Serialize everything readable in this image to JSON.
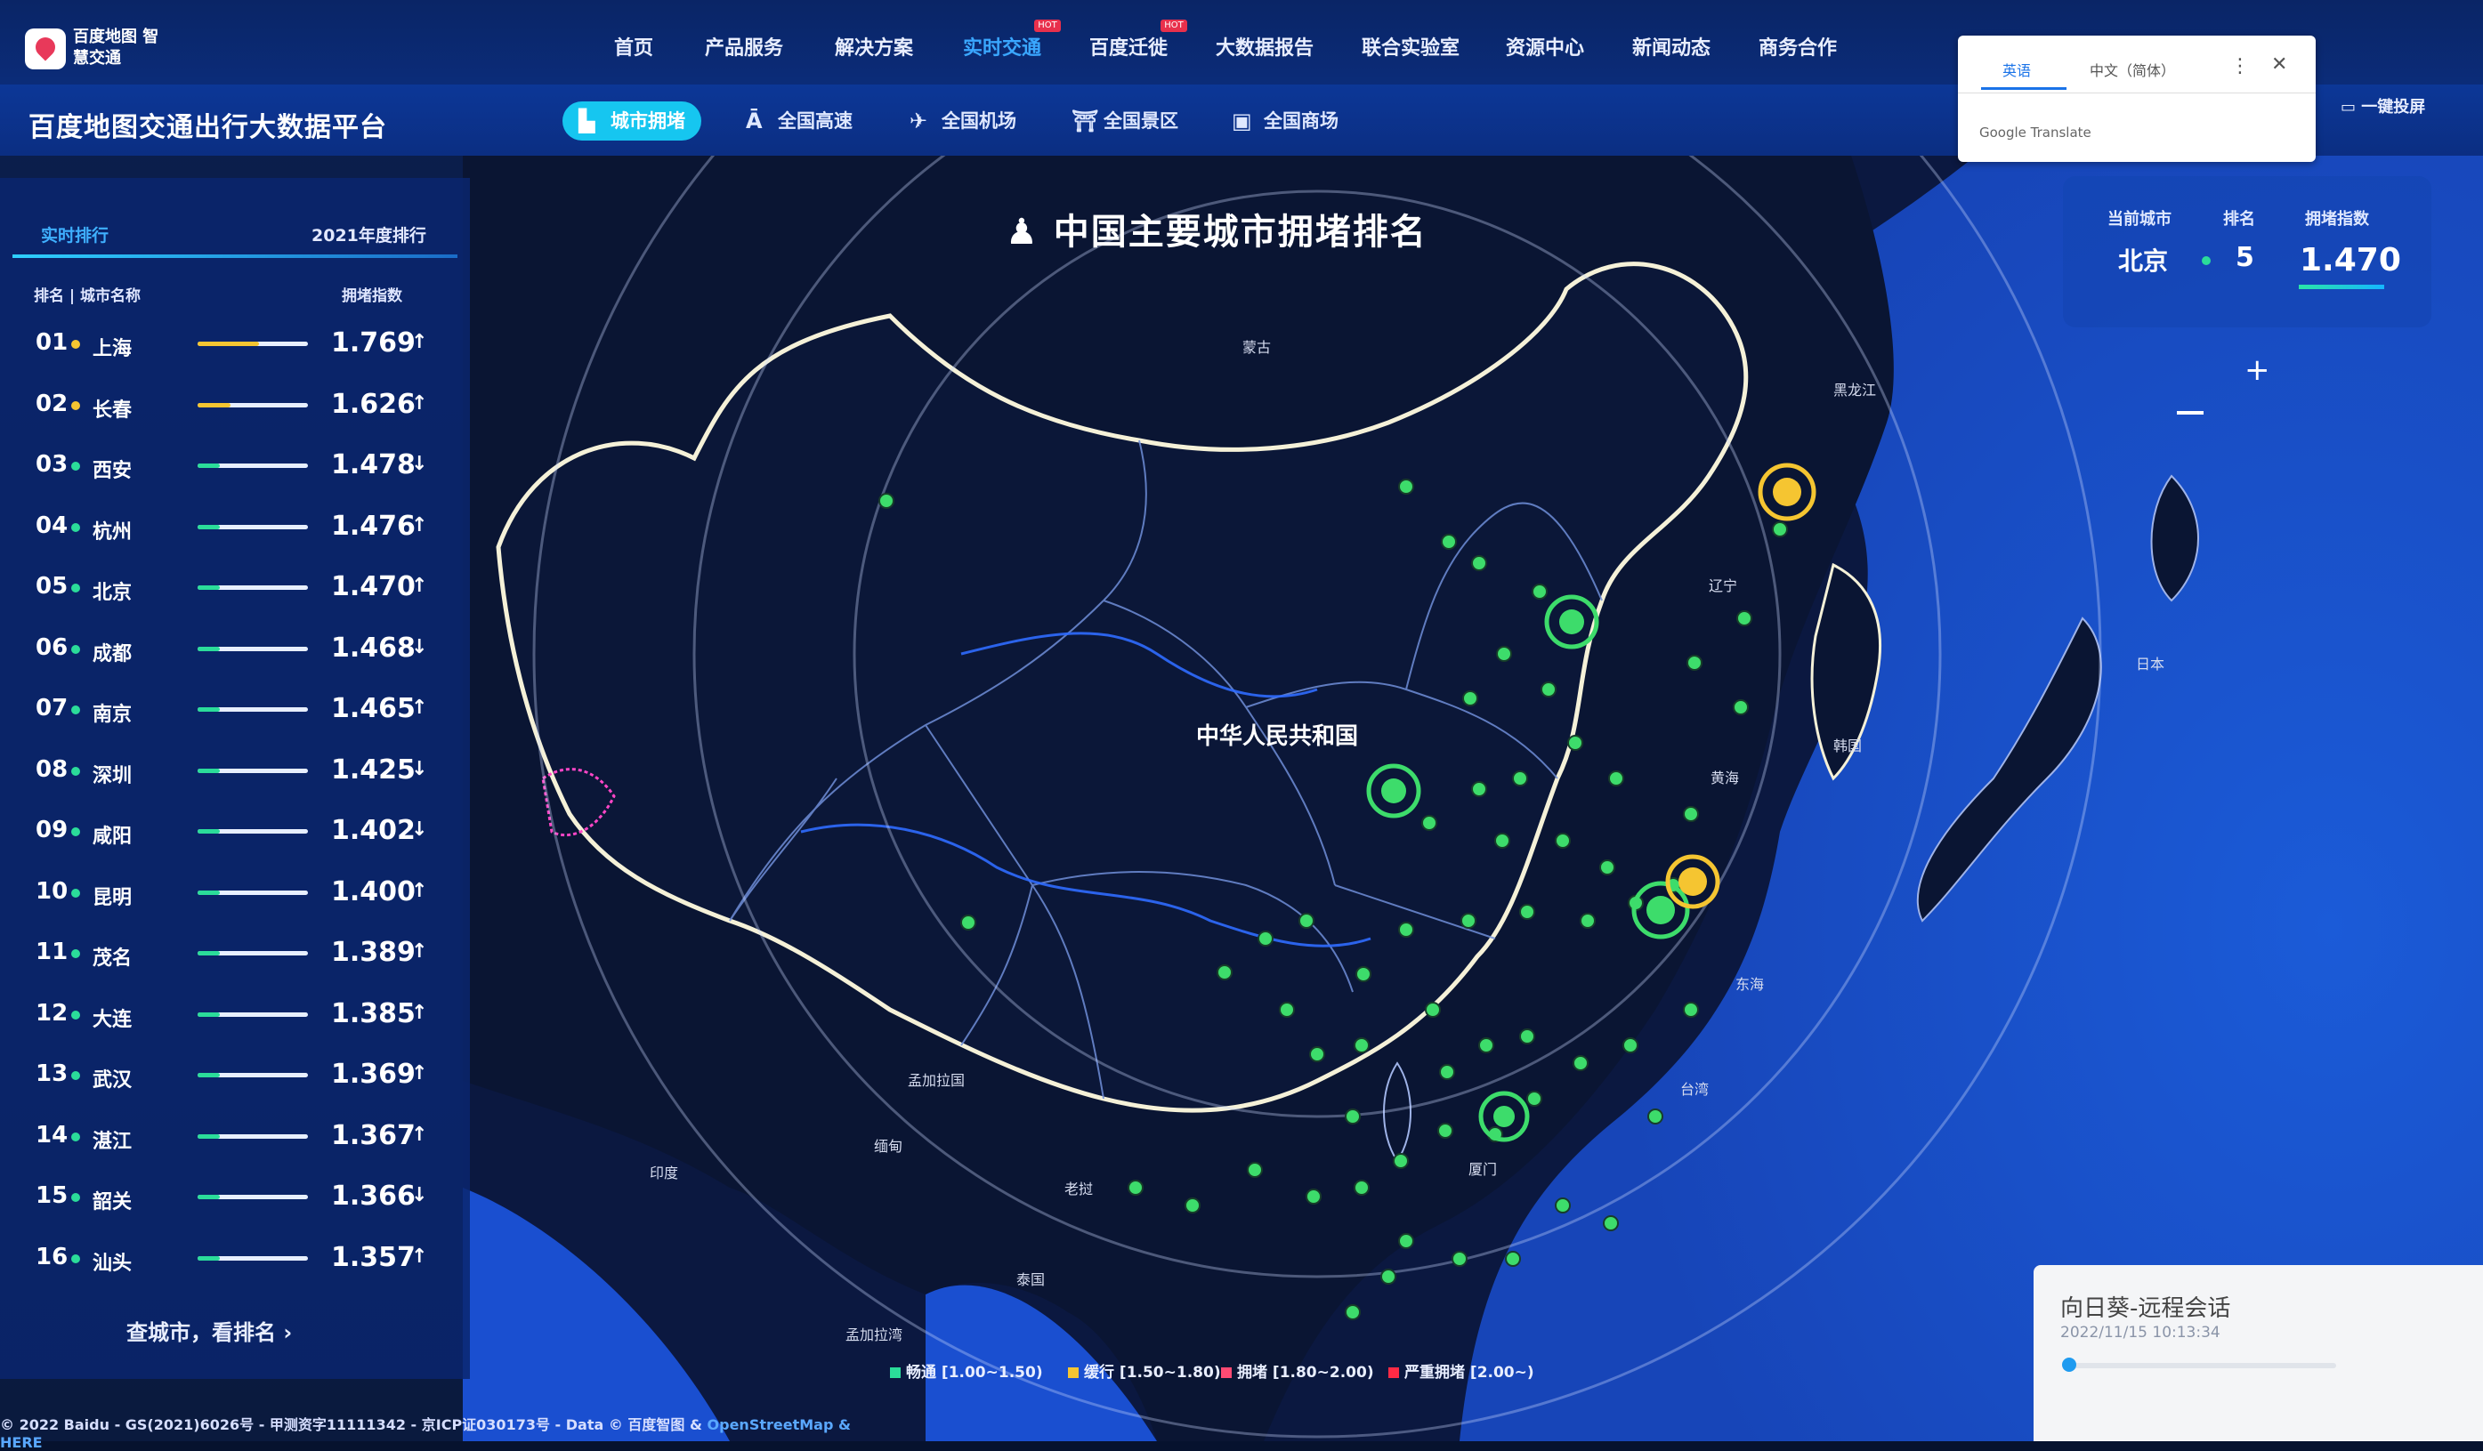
{
  "app": {
    "logo_text": "百度地图 智慧交通",
    "platform_title": "百度地图交通出行大数据平台"
  },
  "nav": {
    "items": [
      {
        "label": "首页"
      },
      {
        "label": "产品服务"
      },
      {
        "label": "解决方案"
      },
      {
        "label": "实时交通",
        "active": true,
        "badge": "HOT"
      },
      {
        "label": "百度迁徙",
        "badge": "HOT"
      },
      {
        "label": "大数据报告"
      },
      {
        "label": "联合实验室"
      },
      {
        "label": "资源中心"
      },
      {
        "label": "新闻动态"
      },
      {
        "label": "商务合作"
      }
    ]
  },
  "subtabs": [
    {
      "label": "城市拥堵",
      "icon": "building-icon",
      "active": true
    },
    {
      "label": "全国高速",
      "icon": "road-icon"
    },
    {
      "label": "全国机场",
      "icon": "plane-icon"
    },
    {
      "label": "全国景区",
      "icon": "scenic-icon"
    },
    {
      "label": "全国商场",
      "icon": "mall-icon"
    }
  ],
  "panel": {
    "tab_realtime": "实时排行",
    "tab_yearly": "2021年度排行",
    "col_rank_city": "排名 | 城市名称",
    "col_index": "拥堵指数",
    "more_link": "查城市，看排名",
    "rows": [
      {
        "rank": "01",
        "city": "上海",
        "value": "1.769",
        "trend": "up",
        "level": "slow",
        "fill": 0.56
      },
      {
        "rank": "02",
        "city": "长春",
        "value": "1.626",
        "trend": "up",
        "level": "slow",
        "fill": 0.3
      },
      {
        "rank": "03",
        "city": "西安",
        "value": "1.478",
        "trend": "down",
        "level": "smooth",
        "fill": 0.2
      },
      {
        "rank": "04",
        "city": "杭州",
        "value": "1.476",
        "trend": "up",
        "level": "smooth",
        "fill": 0.2
      },
      {
        "rank": "05",
        "city": "北京",
        "value": "1.470",
        "trend": "up",
        "level": "smooth",
        "fill": 0.2
      },
      {
        "rank": "06",
        "city": "成都",
        "value": "1.468",
        "trend": "down",
        "level": "smooth",
        "fill": 0.2
      },
      {
        "rank": "07",
        "city": "南京",
        "value": "1.465",
        "trend": "up",
        "level": "smooth",
        "fill": 0.2
      },
      {
        "rank": "08",
        "city": "深圳",
        "value": "1.425",
        "trend": "down",
        "level": "smooth",
        "fill": 0.2
      },
      {
        "rank": "09",
        "city": "咸阳",
        "value": "1.402",
        "trend": "down",
        "level": "smooth",
        "fill": 0.2
      },
      {
        "rank": "10",
        "city": "昆明",
        "value": "1.400",
        "trend": "up",
        "level": "smooth",
        "fill": 0.2
      },
      {
        "rank": "11",
        "city": "茂名",
        "value": "1.389",
        "trend": "up",
        "level": "smooth",
        "fill": 0.2
      },
      {
        "rank": "12",
        "city": "大连",
        "value": "1.385",
        "trend": "up",
        "level": "smooth",
        "fill": 0.2
      },
      {
        "rank": "13",
        "city": "武汉",
        "value": "1.369",
        "trend": "up",
        "level": "smooth",
        "fill": 0.2
      },
      {
        "rank": "14",
        "city": "湛江",
        "value": "1.367",
        "trend": "up",
        "level": "smooth",
        "fill": 0.2
      },
      {
        "rank": "15",
        "city": "韶关",
        "value": "1.366",
        "trend": "down",
        "level": "smooth",
        "fill": 0.2
      },
      {
        "rank": "16",
        "city": "汕头",
        "value": "1.357",
        "trend": "up",
        "level": "smooth",
        "fill": 0.2
      }
    ]
  },
  "map": {
    "title": "中国主要城市拥堵排名",
    "labels": {
      "china": "中华人民共和国",
      "mongolia": "蒙古",
      "japan": "日本",
      "korea": "韩国",
      "india": "印度",
      "myanmar": "缅甸",
      "laos": "老挝",
      "thailand": "泰国",
      "taiwan": "台湾",
      "yellow_sea": "黄海",
      "east_sea": "东海",
      "bangladesh": "孟加拉国",
      "bay": "孟加拉湾",
      "heilongjiang": "黑龙江",
      "liaoning": "辽宁",
      "xiamen": "厦门"
    }
  },
  "infocard": {
    "head_city": "当前城市",
    "head_rank": "排名",
    "head_index": "拥堵指数",
    "city": "北京",
    "rank": "5",
    "index": "1.470"
  },
  "translate": {
    "tab_en": "英语",
    "tab_zh": "中文（简体）",
    "brand": "Google Translate"
  },
  "onekey": "一键投屏",
  "legend": [
    {
      "label": "畅通 [1.00~1.50)",
      "color": "#2bdc9a"
    },
    {
      "label": "缓行 [1.50~1.80)",
      "color": "#f5c531"
    },
    {
      "label": "拥堵 [1.80~2.00)",
      "color": "#ff4a73"
    },
    {
      "label": "严重拥堵 [2.00~)",
      "color": "#ff2a45"
    }
  ],
  "remote": {
    "title": "向日葵-远程会话",
    "time": "2022/11/15 10:13:34"
  },
  "footer": {
    "copyright": "© 2022 Baidu - GS(2021)6026号 - 甲测资字11111342 - 京ICP证030173号 - Data © 百度智图 & ",
    "osm": "OpenStreetMap",
    "here": " & HERE"
  },
  "colors": {
    "accent": "#16c6f0",
    "smooth": "#2bdc9a",
    "slow": "#f5c531"
  }
}
